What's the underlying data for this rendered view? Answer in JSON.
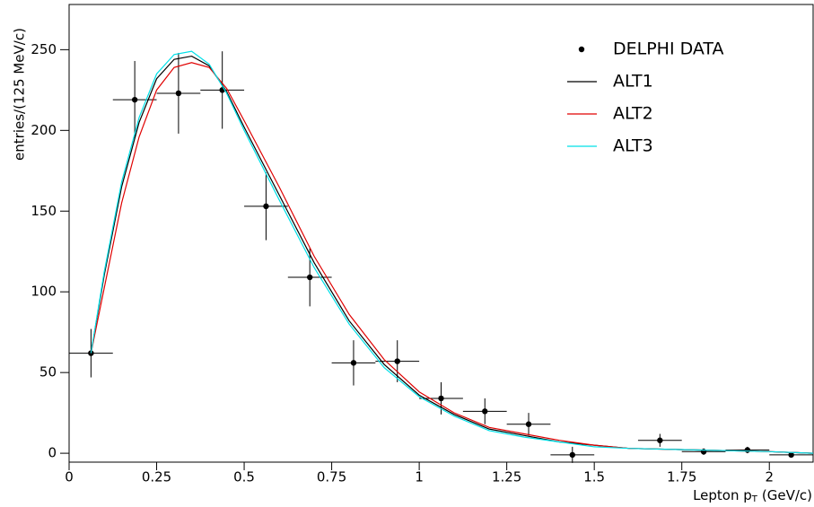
{
  "chart_data": {
    "type": "line",
    "ylabel": "entries/(125 MeV/c)",
    "xlabel": {
      "text": "Lepton p",
      "sub": "T",
      "unit": "(GeV/c)"
    },
    "xlim": [
      0,
      2.125
    ],
    "ylim": [
      -5.5,
      278
    ],
    "xticks": [
      0,
      0.25,
      0.5,
      0.75,
      1,
      1.25,
      1.5,
      1.75,
      2
    ],
    "yticks": [
      0,
      50,
      100,
      150,
      200,
      250
    ],
    "x": [
      0.0625,
      0.1,
      0.15,
      0.2,
      0.25,
      0.3,
      0.35,
      0.4,
      0.45,
      0.5,
      0.6,
      0.7,
      0.8,
      0.9,
      1.0,
      1.1,
      1.2,
      1.3,
      1.4,
      1.5,
      1.6,
      1.8,
      2.0,
      2.125
    ],
    "series": [
      {
        "name": "DELPHI DATA",
        "type": "errorbar",
        "color": "#000000",
        "x": [
          0.0625,
          0.1875,
          0.3125,
          0.4375,
          0.5625,
          0.6875,
          0.8125,
          0.9375,
          1.0625,
          1.1875,
          1.3125,
          1.4375,
          1.6875,
          1.8125,
          1.9375,
          2.0625
        ],
        "values": [
          62,
          219,
          223,
          225,
          153,
          109,
          56,
          57,
          34,
          26,
          18,
          -1,
          8,
          1,
          2,
          -1
        ],
        "errors": [
          15,
          24,
          25,
          24,
          21,
          18,
          14,
          13,
          10,
          8,
          7,
          5,
          4,
          2,
          2,
          1
        ],
        "xerr": 0.0625
      },
      {
        "name": "ALT1",
        "color": "#000000",
        "values": [
          62,
          110,
          165,
          205,
          232,
          244,
          246,
          240,
          224,
          202,
          160,
          118,
          82,
          55,
          36,
          24,
          15,
          11,
          7,
          5,
          3,
          2,
          1,
          0
        ]
      },
      {
        "name": "ALT2",
        "color": "#e00000",
        "values": [
          62,
          102,
          155,
          196,
          225,
          239,
          242,
          239,
          226,
          206,
          165,
          122,
          86,
          58,
          38,
          25,
          16,
          12,
          8,
          5,
          3,
          2,
          1,
          0
        ]
      },
      {
        "name": "ALT3",
        "color": "#00e0e8",
        "values": [
          62,
          112,
          168,
          208,
          235,
          247,
          249,
          241,
          223,
          200,
          157,
          115,
          80,
          53,
          35,
          23,
          14,
          10,
          7,
          4,
          3,
          2,
          1,
          0
        ]
      }
    ]
  }
}
